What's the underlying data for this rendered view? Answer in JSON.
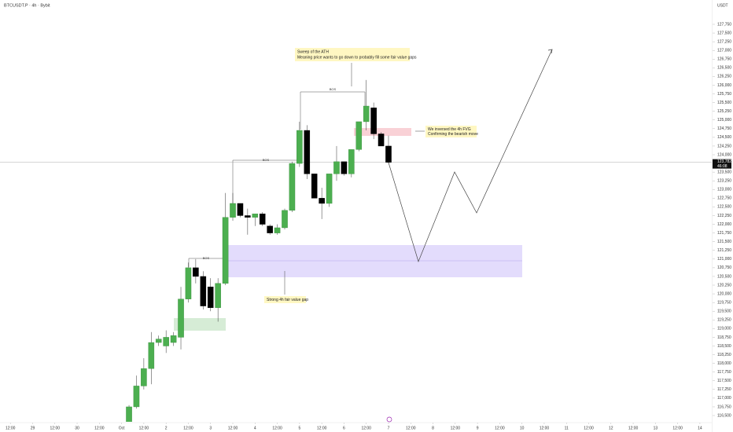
{
  "chart_data": {
    "type": "candlestick",
    "title": "BTCUSDT.P · 4h · Bybit",
    "y_axis_label": "USDT",
    "up_color": "#4caf50",
    "down_color": "#000000",
    "open": [
      116200,
      116750,
      117350,
      117850,
      118600,
      118500,
      118600,
      118750,
      119850,
      120750,
      120500,
      120200,
      119600,
      120300,
      122200,
      122600,
      122250,
      122200,
      122300,
      121950,
      121750,
      121900,
      122400,
      123750,
      124700,
      123450,
      122750,
      122600,
      123450,
      123800,
      123450,
      124150,
      124950,
      125350,
      124600,
      124250
    ],
    "high": [
      116800,
      117650,
      118150,
      118900,
      118800,
      118950,
      118900,
      120200,
      120900,
      121000,
      120650,
      120450,
      120450,
      122900,
      122900,
      122600,
      122450,
      122300,
      122350,
      122000,
      122000,
      122450,
      123800,
      124950,
      124850,
      123450,
      123050,
      123450,
      124250,
      123800,
      124150,
      124950,
      126150,
      125500,
      124650,
      124550
    ],
    "low": [
      116150,
      116700,
      117250,
      117400,
      118500,
      118300,
      118500,
      118400,
      119750,
      120300,
      119550,
      119500,
      119200,
      120250,
      122100,
      122200,
      121700,
      121950,
      121950,
      121700,
      121700,
      121850,
      122350,
      123650,
      123300,
      122750,
      122150,
      122500,
      123250,
      123400,
      123350,
      124100,
      124700,
      124450,
      124250,
      123750
    ],
    "close": [
      116750,
      117350,
      117850,
      118600,
      118700,
      118750,
      118800,
      119850,
      120750,
      120500,
      119650,
      119600,
      120300,
      122200,
      122600,
      122250,
      122200,
      122300,
      122000,
      121750,
      121900,
      122400,
      123750,
      124700,
      123450,
      122750,
      122600,
      123450,
      123800,
      123450,
      124150,
      124950,
      125400,
      124600,
      124250,
      123782.5
    ],
    "last_price": {
      "value": 123782.5,
      "label": "123,782.5"
    },
    "countdown": "46:08",
    "ylim": [
      116320,
      128450
    ],
    "yticks": [
      {
        "value": 116500,
        "label": "116,500"
      },
      {
        "value": 116750,
        "label": "116,750"
      },
      {
        "value": 117000,
        "label": "117,000"
      },
      {
        "value": 117250,
        "label": "117,250"
      },
      {
        "value": 117500,
        "label": "117,500"
      },
      {
        "value": 117750,
        "label": "117,750"
      },
      {
        "value": 118000,
        "label": "118,000"
      },
      {
        "value": 118250,
        "label": "118,250"
      },
      {
        "value": 118500,
        "label": "118,500"
      },
      {
        "value": 118750,
        "label": "118,750"
      },
      {
        "value": 119000,
        "label": "119,000"
      },
      {
        "value": 119250,
        "label": "119,250"
      },
      {
        "value": 119500,
        "label": "119,500"
      },
      {
        "value": 119750,
        "label": "119,750"
      },
      {
        "value": 120000,
        "label": "120,000"
      },
      {
        "value": 120250,
        "label": "120,250"
      },
      {
        "value": 120500,
        "label": "120,500"
      },
      {
        "value": 120750,
        "label": "120,750"
      },
      {
        "value": 121000,
        "label": "121,000"
      },
      {
        "value": 121250,
        "label": "121,250"
      },
      {
        "value": 121500,
        "label": "121,500"
      },
      {
        "value": 121750,
        "label": "121,750"
      },
      {
        "value": 122000,
        "label": "122,000"
      },
      {
        "value": 122250,
        "label": "122,250"
      },
      {
        "value": 122500,
        "label": "122,500"
      },
      {
        "value": 122750,
        "label": "122,750"
      },
      {
        "value": 123000,
        "label": "123,000"
      },
      {
        "value": 123250,
        "label": "123,250"
      },
      {
        "value": 123500,
        "label": "123,500"
      },
      {
        "value": 124000,
        "label": "124,000"
      },
      {
        "value": 124250,
        "label": "124,250"
      },
      {
        "value": 124500,
        "label": "124,500"
      },
      {
        "value": 124750,
        "label": "124,750"
      },
      {
        "value": 125000,
        "label": "125,000"
      },
      {
        "value": 125250,
        "label": "125,250"
      },
      {
        "value": 125500,
        "label": "125,500"
      },
      {
        "value": 125750,
        "label": "125,750"
      },
      {
        "value": 126000,
        "label": "126,000"
      },
      {
        "value": 126250,
        "label": "126,250"
      },
      {
        "value": 126500,
        "label": "126,500"
      },
      {
        "value": 126750,
        "label": "126,750"
      },
      {
        "value": 127000,
        "label": "127,000"
      },
      {
        "value": 127250,
        "label": "127,250"
      },
      {
        "value": 127500,
        "label": "127,500"
      },
      {
        "value": 127750,
        "label": "127,750"
      }
    ],
    "xlim": [
      -17.4,
      78.6
    ],
    "xticks": [
      {
        "value": -16,
        "label": "12:00"
      },
      {
        "value": -13,
        "label": "29"
      },
      {
        "value": -10,
        "label": "12:00"
      },
      {
        "value": -7,
        "label": "30"
      },
      {
        "value": -4,
        "label": "12:00"
      },
      {
        "value": -1,
        "label": "Oct"
      },
      {
        "value": 2,
        "label": "12:00"
      },
      {
        "value": 5,
        "label": "2"
      },
      {
        "value": 8,
        "label": "12:00"
      },
      {
        "value": 11,
        "label": "3"
      },
      {
        "value": 14,
        "label": "12:00"
      },
      {
        "value": 17,
        "label": "4"
      },
      {
        "value": 20,
        "label": "12:00"
      },
      {
        "value": 23,
        "label": "5"
      },
      {
        "value": 26,
        "label": "12:00"
      },
      {
        "value": 29,
        "label": "6"
      },
      {
        "value": 32,
        "label": "12:00"
      },
      {
        "value": 35,
        "label": "7"
      },
      {
        "value": 38,
        "label": "12:00"
      },
      {
        "value": 41,
        "label": "8"
      },
      {
        "value": 44,
        "label": "12:00"
      },
      {
        "value": 47,
        "label": "9"
      },
      {
        "value": 50,
        "label": "12:00"
      },
      {
        "value": 53,
        "label": "10"
      },
      {
        "value": 56,
        "label": "12:00"
      },
      {
        "value": 59,
        "label": "11"
      },
      {
        "value": 62,
        "label": "12:00"
      },
      {
        "value": 65,
        "label": "12"
      },
      {
        "value": 68,
        "label": "12:00"
      },
      {
        "value": 71,
        "label": "13"
      },
      {
        "value": 74,
        "label": "12:00"
      },
      {
        "value": 77,
        "label": "14"
      }
    ],
    "bos_labels": [
      "BOS",
      "BOS",
      "BOS"
    ],
    "annotations": [
      [
        "Sweep of the ATH",
        "Meaning price wants to go down to probably fill some fair value gaps"
      ],
      [
        "We inversed the 4h FVG",
        "Confirming the bearish move"
      ],
      [
        "Strong 4h fair value gap"
      ]
    ]
  }
}
